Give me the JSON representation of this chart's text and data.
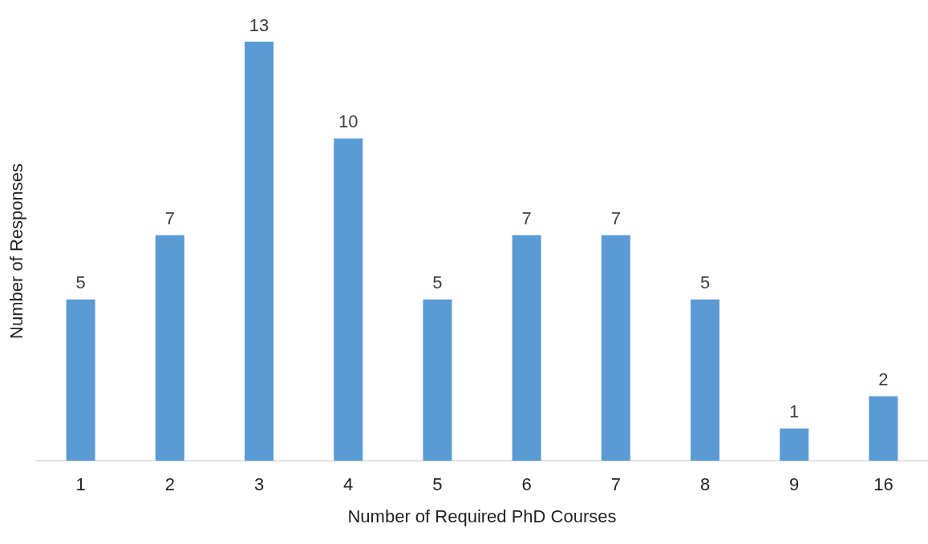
{
  "chart_data": {
    "type": "bar",
    "xlabel": "Number of Required PhD Courses",
    "ylabel": "Number of Responses",
    "categories": [
      "1",
      "2",
      "3",
      "4",
      "5",
      "6",
      "7",
      "8",
      "9",
      "16"
    ],
    "values": [
      5,
      7,
      13,
      10,
      5,
      7,
      7,
      5,
      1,
      2
    ],
    "color": "#5b9bd5",
    "data_labels": true,
    "grid": false
  }
}
